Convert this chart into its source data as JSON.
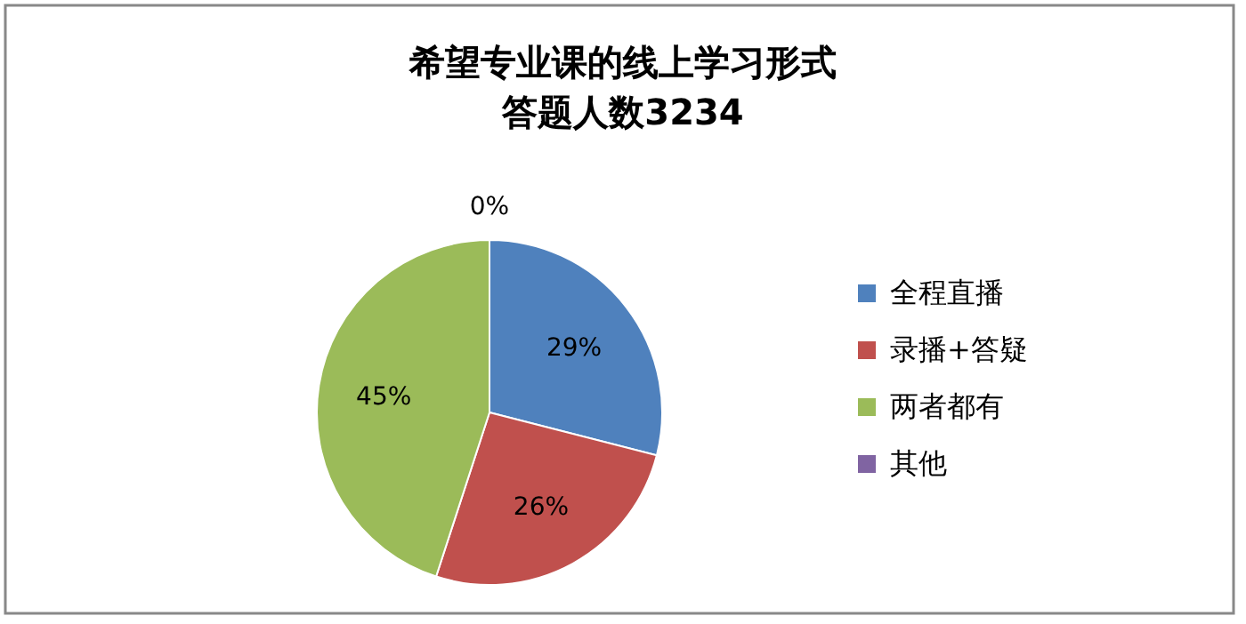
{
  "chart_data": {
    "type": "pie",
    "title": "希望专业课的线上学习形式",
    "subtitle": "答题人数3234",
    "categories": [
      "全程直播",
      "录播+答疑",
      "两者都有",
      "其他"
    ],
    "values": [
      29,
      26,
      45,
      0
    ],
    "colors": [
      "#4f81bd",
      "#c0504d",
      "#9bbb59",
      "#8064a2"
    ],
    "value_labels": [
      "29%",
      "26%",
      "45%",
      "0%"
    ],
    "legend": "right"
  }
}
